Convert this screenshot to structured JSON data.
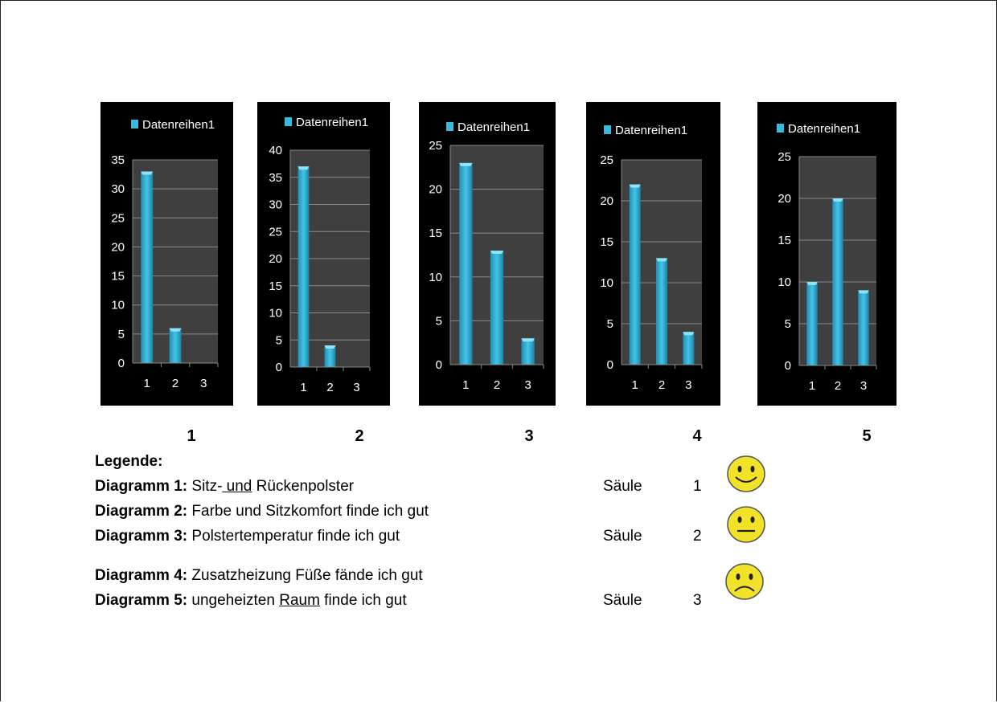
{
  "chart_data": [
    {
      "type": "bar",
      "legend": "Datenreihen1",
      "categories": [
        "1",
        "2",
        "3"
      ],
      "values": [
        33,
        6,
        0
      ],
      "ylim": [
        0,
        35
      ],
      "yticks": [
        0,
        5,
        10,
        15,
        20,
        25,
        30,
        35
      ]
    },
    {
      "type": "bar",
      "legend": "Datenreihen1",
      "categories": [
        "1",
        "2",
        "3"
      ],
      "values": [
        37,
        4,
        0
      ],
      "ylim": [
        0,
        40
      ],
      "yticks": [
        0,
        5,
        10,
        15,
        20,
        25,
        30,
        35,
        40
      ]
    },
    {
      "type": "bar",
      "legend": "Datenreihen1",
      "categories": [
        "1",
        "2",
        "3"
      ],
      "values": [
        23,
        13,
        3
      ],
      "ylim": [
        0,
        25
      ],
      "yticks": [
        0,
        5,
        10,
        15,
        20,
        25
      ]
    },
    {
      "type": "bar",
      "legend": "Datenreihen1",
      "categories": [
        "1",
        "2",
        "3"
      ],
      "values": [
        22,
        13,
        4
      ],
      "ylim": [
        0,
        25
      ],
      "yticks": [
        0,
        5,
        10,
        15,
        20,
        25
      ]
    },
    {
      "type": "bar",
      "legend": "Datenreihen1",
      "categories": [
        "1",
        "2",
        "3"
      ],
      "values": [
        10,
        20,
        9
      ],
      "ylim": [
        0,
        25
      ],
      "yticks": [
        0,
        5,
        10,
        15,
        20,
        25
      ]
    }
  ],
  "chart_numbers": [
    "1",
    "2",
    "3",
    "4",
    "5"
  ],
  "legend": {
    "title": "Legende:",
    "items": [
      {
        "label": "Diagramm 1:",
        "pre": "Sitz-",
        "underlined": " und",
        "post": " Rückenpolster"
      },
      {
        "label": "Diagramm 2:",
        "pre": "Farbe und Sitzkomfort finde ich gut",
        "underlined": "",
        "post": ""
      },
      {
        "label": "Diagramm 3:",
        "pre": "Polstertemperatur finde ich gut",
        "underlined": "",
        "post": ""
      },
      {
        "label": "Diagramm 4:",
        "pre": "Zusatzheizung Füße fände ich gut",
        "underlined": "",
        "post": ""
      },
      {
        "label": "Diagramm 5:",
        "pre": "ungeheizten ",
        "underlined": "Raum",
        "post": " finde ich gut"
      }
    ]
  },
  "columns": [
    {
      "word": "Säule",
      "number": "1",
      "mood": "happy"
    },
    {
      "word": "Säule",
      "number": "2",
      "mood": "neutral"
    },
    {
      "word": "Säule",
      "number": "3",
      "mood": "sad"
    }
  ],
  "colors": {
    "bar": "#2aa9cf",
    "chart_bg": "#000000",
    "plot_bg": "#3f3f3f",
    "smiley": "#f3e22a"
  }
}
